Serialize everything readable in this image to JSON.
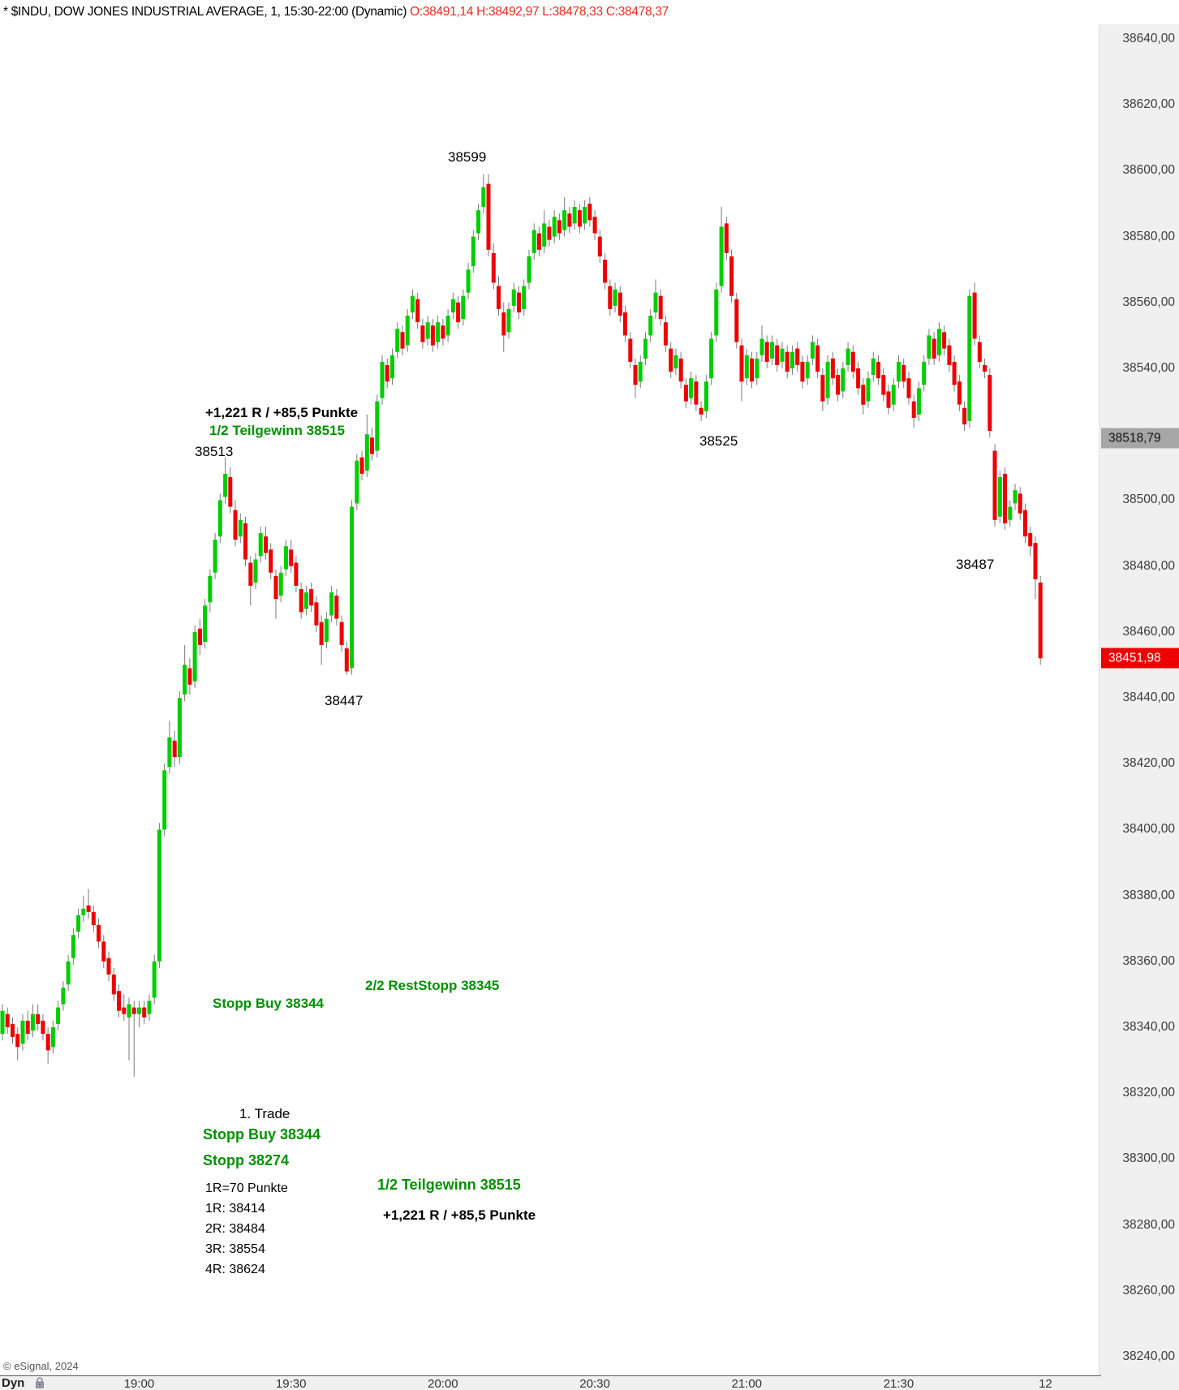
{
  "header": {
    "title": "* $INDU, DOW JONES INDUSTRIAL AVERAGE, 1, 15:30-22:00 (Dynamic)",
    "ohlc": "O:38491,14 H:38492,97 L:38478,33 C:38478,37"
  },
  "watermark": "© eSignal, 2024",
  "bottom_bar": {
    "mode_label": "Dyn",
    "lock_icon": "padlock-icon",
    "time_ticks": [
      {
        "label": "19:00",
        "minutes": 0
      },
      {
        "label": "19:30",
        "minutes": 30
      },
      {
        "label": "20:00",
        "minutes": 60
      },
      {
        "label": "20:30",
        "minutes": 90
      },
      {
        "label": "21:00",
        "minutes": 120
      },
      {
        "label": "21:30",
        "minutes": 150
      },
      {
        "label": "12",
        "minutes": 179
      }
    ]
  },
  "y_axis": {
    "ticks": [
      {
        "label": "38640,00",
        "value": 38640
      },
      {
        "label": "38620,00",
        "value": 38620
      },
      {
        "label": "38600,00",
        "value": 38600
      },
      {
        "label": "38580,00",
        "value": 38580
      },
      {
        "label": "38560,00",
        "value": 38560
      },
      {
        "label": "38540,00",
        "value": 38540
      },
      {
        "label": "38520,00",
        "value": 38520,
        "hidden": true
      },
      {
        "label": "38500,00",
        "value": 38500
      },
      {
        "label": "38480,00",
        "value": 38480
      },
      {
        "label": "38460,00",
        "value": 38460
      },
      {
        "label": "38440,00",
        "value": 38440
      },
      {
        "label": "38420,00",
        "value": 38420
      },
      {
        "label": "38400,00",
        "value": 38400
      },
      {
        "label": "38380,00",
        "value": 38380
      },
      {
        "label": "38360,00",
        "value": 38360
      },
      {
        "label": "38340,00",
        "value": 38340
      },
      {
        "label": "38320,00",
        "value": 38320
      },
      {
        "label": "38300,00",
        "value": 38300
      },
      {
        "label": "38280,00",
        "value": 38280
      },
      {
        "label": "38260,00",
        "value": 38260
      },
      {
        "label": "38240,00",
        "value": 38240
      }
    ],
    "last_price": {
      "label": "38451,98",
      "value": 38451.98
    },
    "ref_price": {
      "label": "38518,79",
      "value": 38518.79
    }
  },
  "annotations": {
    "peak_599": {
      "text": "38599"
    },
    "tp_punkte_top": {
      "text": "+1,221 R / +85,5 Punkte"
    },
    "teilgewinn_top": {
      "text": "1/2 Teilgewinn 38515"
    },
    "lbl_38513": {
      "text": "38513"
    },
    "lbl_38525": {
      "text": "38525"
    },
    "lbl_38487": {
      "text": "38487"
    },
    "lbl_38447": {
      "text": "38447"
    },
    "reststopp": {
      "text": "2/2 RestStopp 38345"
    },
    "stoppbuy_line": {
      "text": "Stopp Buy 38344"
    },
    "trade_title": {
      "text": "1. Trade"
    },
    "stoppbuy_block": {
      "text": "Stopp Buy 38344"
    },
    "stopp_block": {
      "text": "Stopp 38274"
    },
    "r_def": {
      "text": "1R=70 Punkte"
    },
    "r1": {
      "text": "1R: 38414"
    },
    "r2": {
      "text": "2R: 38484"
    },
    "r3": {
      "text": "3R: 38554"
    },
    "r4": {
      "text": "4R: 38624"
    },
    "teilgewinn_block": {
      "text": "1/2 Teilgewinn 38515"
    },
    "tp_punkte_block": {
      "text": "+1,221 R / +85,5 Punkte"
    }
  },
  "chart_data": {
    "type": "candlestick",
    "title": "$INDU, DOW JONES INDUSTRIAL AVERAGE, 1 min, 15:30-22:00 (Dynamic)",
    "interval_minutes": 1,
    "first_candle_time": "18:33",
    "session": "15:30-22:00",
    "ylim": [
      38240,
      38640
    ],
    "grid": false,
    "legend": "none",
    "key_levels": {
      "high": 38599,
      "swing_high": 38513,
      "swing_low": 38447,
      "late_low": 38487,
      "mid_low": 38525,
      "last": 38451.98,
      "stop_buy": 38344,
      "rest_stop": 38345,
      "initial_stop": 38274,
      "teilgewinn": 38515,
      "r_unit_points": 70,
      "r_targets": [
        38414,
        38484,
        38554,
        38624
      ]
    },
    "up_color": "#00ce00",
    "down_color": "#ee0000",
    "wick_color": "#7a7a7a",
    "candles": [
      [
        38338,
        38347,
        38336,
        38345
      ],
      [
        38344,
        38346,
        38338,
        38340
      ],
      [
        38341,
        38343,
        38335,
        38337
      ],
      [
        38338,
        38340,
        38330,
        38334
      ],
      [
        38335,
        38344,
        38333,
        38342
      ],
      [
        38342,
        38345,
        38336,
        38338
      ],
      [
        38339,
        38347,
        38337,
        38344
      ],
      [
        38344,
        38347,
        38339,
        38341
      ],
      [
        38342,
        38344,
        38336,
        38338
      ],
      [
        38338,
        38340,
        38329,
        38333
      ],
      [
        38334,
        38342,
        38332,
        38340
      ],
      [
        38341,
        38348,
        38339,
        38346
      ],
      [
        38347,
        38354,
        38345,
        38352
      ],
      [
        38353,
        38362,
        38351,
        38360
      ],
      [
        38361,
        38370,
        38359,
        38368
      ],
      [
        38369,
        38376,
        38367,
        38374
      ],
      [
        38374,
        38380,
        38372,
        38376
      ],
      [
        38377,
        38382,
        38373,
        38375
      ],
      [
        38375,
        38377,
        38369,
        38371
      ],
      [
        38371,
        38373,
        38364,
        38366
      ],
      [
        38366,
        38368,
        38358,
        38360
      ],
      [
        38361,
        38363,
        38354,
        38356
      ],
      [
        38356,
        38358,
        38348,
        38350
      ],
      [
        38351,
        38353,
        38343,
        38345
      ],
      [
        38346,
        38350,
        38342,
        38344
      ],
      [
        38343,
        38349,
        38330,
        38347
      ],
      [
        38346,
        38348,
        38325,
        38344
      ],
      [
        38344,
        38348,
        38340,
        38346
      ],
      [
        38346,
        38348,
        38341,
        38343
      ],
      [
        38344,
        38350,
        38342,
        38348
      ],
      [
        38349,
        38362,
        38347,
        38360
      ],
      [
        38360,
        38402,
        38358,
        38400
      ],
      [
        38400,
        38420,
        38398,
        38418
      ],
      [
        38419,
        38433,
        38417,
        38428
      ],
      [
        38427,
        38430,
        38419,
        38422
      ],
      [
        38422,
        38442,
        38420,
        38440
      ],
      [
        38441,
        38456,
        38439,
        38450
      ],
      [
        38449,
        38452,
        38441,
        38444
      ],
      [
        38445,
        38462,
        38443,
        38460
      ],
      [
        38461,
        38464,
        38453,
        38456
      ],
      [
        38457,
        38470,
        38455,
        38468
      ],
      [
        38469,
        38479,
        38466,
        38477
      ],
      [
        38478,
        38490,
        38476,
        38488
      ],
      [
        38489,
        38502,
        38487,
        38500
      ],
      [
        38501,
        38513,
        38499,
        38508
      ],
      [
        38507,
        38510,
        38496,
        38498
      ],
      [
        38497,
        38500,
        38486,
        38488
      ],
      [
        38489,
        38496,
        38487,
        38494
      ],
      [
        38493,
        38495,
        38480,
        38482
      ],
      [
        38481,
        38483,
        38468,
        38474
      ],
      [
        38475,
        38484,
        38473,
        38482
      ],
      [
        38483,
        38492,
        38481,
        38490
      ],
      [
        38489,
        38492,
        38482,
        38484
      ],
      [
        38485,
        38487,
        38476,
        38478
      ],
      [
        38477,
        38479,
        38464,
        38470
      ],
      [
        38471,
        38480,
        38469,
        38478
      ],
      [
        38479,
        38488,
        38477,
        38486
      ],
      [
        38485,
        38488,
        38478,
        38480
      ],
      [
        38481,
        38483,
        38472,
        38474
      ],
      [
        38473,
        38475,
        38464,
        38466
      ],
      [
        38467,
        38474,
        38465,
        38472
      ],
      [
        38473,
        38475,
        38466,
        38468
      ],
      [
        38469,
        38471,
        38460,
        38462
      ],
      [
        38463,
        38465,
        38450,
        38456
      ],
      [
        38457,
        38466,
        38455,
        38464
      ],
      [
        38465,
        38474,
        38463,
        38472
      ],
      [
        38471,
        38473,
        38462,
        38464
      ],
      [
        38463,
        38465,
        38454,
        38456
      ],
      [
        38455,
        38457,
        38447,
        38448
      ],
      [
        38449,
        38500,
        38447,
        38498
      ],
      [
        38499,
        38514,
        38497,
        38512
      ],
      [
        38513,
        38515,
        38506,
        38508
      ],
      [
        38509,
        38526,
        38507,
        38520
      ],
      [
        38519,
        38522,
        38512,
        38514
      ],
      [
        38515,
        38532,
        38513,
        38530
      ],
      [
        38531,
        38544,
        38529,
        38542
      ],
      [
        38541,
        38543,
        38534,
        38536
      ],
      [
        38537,
        38546,
        38535,
        38544
      ],
      [
        38545,
        38554,
        38543,
        38552
      ],
      [
        38551,
        38553,
        38544,
        38546
      ],
      [
        38547,
        38558,
        38545,
        38556
      ],
      [
        38557,
        38564,
        38555,
        38562
      ],
      [
        38561,
        38563,
        38552,
        38554
      ],
      [
        38553,
        38555,
        38546,
        38548
      ],
      [
        38549,
        38556,
        38547,
        38554
      ],
      [
        38553,
        38555,
        38545,
        38547
      ],
      [
        38548,
        38556,
        38546,
        38554
      ],
      [
        38553,
        38555,
        38547,
        38549
      ],
      [
        38550,
        38558,
        38548,
        38556
      ],
      [
        38557,
        38563,
        38555,
        38561
      ],
      [
        38560,
        38562,
        38552,
        38554
      ],
      [
        38555,
        38564,
        38553,
        38562
      ],
      [
        38563,
        38572,
        38561,
        38570
      ],
      [
        38571,
        38582,
        38569,
        38580
      ],
      [
        38581,
        38590,
        38579,
        38588
      ],
      [
        38589,
        38599,
        38587,
        38595
      ],
      [
        38596,
        38599,
        38574,
        38576
      ],
      [
        38575,
        38578,
        38564,
        38566
      ],
      [
        38565,
        38568,
        38556,
        38558
      ],
      [
        38557,
        38560,
        38545,
        38550
      ],
      [
        38551,
        38560,
        38549,
        38558
      ],
      [
        38559,
        38566,
        38557,
        38564
      ],
      [
        38563,
        38565,
        38555,
        38557
      ],
      [
        38558,
        38567,
        38556,
        38565
      ],
      [
        38566,
        38576,
        38564,
        38574
      ],
      [
        38575,
        38584,
        38573,
        38582
      ],
      [
        38581,
        38583,
        38574,
        38576
      ],
      [
        38577,
        38588,
        38575,
        38584
      ],
      [
        38583,
        38585,
        38577,
        38579
      ],
      [
        38580,
        38588,
        38578,
        38586
      ],
      [
        38585,
        38587,
        38579,
        38581
      ],
      [
        38582,
        38592,
        38580,
        38588
      ],
      [
        38587,
        38589,
        38581,
        38583
      ],
      [
        38584,
        38591,
        38582,
        38589
      ],
      [
        38588,
        38590,
        38581,
        38583
      ],
      [
        38584,
        38591,
        38582,
        38589
      ],
      [
        38590,
        38592,
        38583,
        38585
      ],
      [
        38586,
        38588,
        38579,
        38581
      ],
      [
        38580,
        38582,
        38572,
        38574
      ],
      [
        38573,
        38575,
        38564,
        38566
      ],
      [
        38565,
        38567,
        38556,
        38558
      ],
      [
        38559,
        38566,
        38557,
        38564
      ],
      [
        38563,
        38565,
        38554,
        38556
      ],
      [
        38557,
        38559,
        38548,
        38550
      ],
      [
        38549,
        38551,
        38540,
        38542
      ],
      [
        38541,
        38543,
        38531,
        38535
      ],
      [
        38536,
        38544,
        38534,
        38542
      ],
      [
        38543,
        38551,
        38541,
        38549
      ],
      [
        38550,
        38558,
        38548,
        38556
      ],
      [
        38557,
        38567,
        38555,
        38563
      ],
      [
        38562,
        38564,
        38553,
        38555
      ],
      [
        38554,
        38556,
        38545,
        38547
      ],
      [
        38546,
        38548,
        38537,
        38539
      ],
      [
        38540,
        38546,
        38538,
        38544
      ],
      [
        38543,
        38545,
        38534,
        38536
      ],
      [
        38535,
        38537,
        38528,
        38530
      ],
      [
        38531,
        38539,
        38529,
        38537
      ],
      [
        38536,
        38538,
        38527,
        38529
      ],
      [
        38528,
        38530,
        38524,
        38526
      ],
      [
        38527,
        38538,
        38525,
        38536
      ],
      [
        38537,
        38551,
        38535,
        38549
      ],
      [
        38550,
        38566,
        38548,
        38564
      ],
      [
        38565,
        38589,
        38563,
        38583
      ],
      [
        38584,
        38586,
        38573,
        38575
      ],
      [
        38574,
        38576,
        38560,
        38562
      ],
      [
        38561,
        38563,
        38546,
        38548
      ],
      [
        38547,
        38549,
        38530,
        38536
      ],
      [
        38537,
        38546,
        38535,
        38544
      ],
      [
        38543,
        38545,
        38534,
        38536
      ],
      [
        38537,
        38545,
        38535,
        38543
      ],
      [
        38544,
        38553,
        38542,
        38549
      ],
      [
        38548,
        38550,
        38540,
        38542
      ],
      [
        38543,
        38550,
        38541,
        38548
      ],
      [
        38547,
        38549,
        38539,
        38541
      ],
      [
        38542,
        38548,
        38540,
        38546
      ],
      [
        38545,
        38547,
        38537,
        38539
      ],
      [
        38540,
        38547,
        38538,
        38545
      ],
      [
        38546,
        38548,
        38539,
        38541
      ],
      [
        38542,
        38544,
        38534,
        38536
      ],
      [
        38537,
        38544,
        38535,
        38542
      ],
      [
        38543,
        38550,
        38541,
        38548
      ],
      [
        38547,
        38549,
        38537,
        38539
      ],
      [
        38538,
        38540,
        38527,
        38530
      ],
      [
        38531,
        38544,
        38529,
        38542
      ],
      [
        38543,
        38545,
        38535,
        38537
      ],
      [
        38538,
        38540,
        38530,
        38532
      ],
      [
        38533,
        38542,
        38531,
        38540
      ],
      [
        38541,
        38548,
        38539,
        38546
      ],
      [
        38545,
        38547,
        38537,
        38539
      ],
      [
        38540,
        38542,
        38532,
        38534
      ],
      [
        38535,
        38537,
        38526,
        38529
      ],
      [
        38530,
        38539,
        38528,
        38537
      ],
      [
        38538,
        38545,
        38536,
        38543
      ],
      [
        38542,
        38544,
        38535,
        38537
      ],
      [
        38538,
        38540,
        38530,
        38532
      ],
      [
        38533,
        38535,
        38526,
        38528
      ],
      [
        38529,
        38537,
        38527,
        38535
      ],
      [
        38536,
        38544,
        38534,
        38542
      ],
      [
        38541,
        38543,
        38534,
        38536
      ],
      [
        38537,
        38539,
        38529,
        38531
      ],
      [
        38530,
        38532,
        38522,
        38525
      ],
      [
        38526,
        38536,
        38524,
        38534
      ],
      [
        38535,
        38544,
        38533,
        38542
      ],
      [
        38543,
        38552,
        38541,
        38550
      ],
      [
        38549,
        38551,
        38541,
        38543
      ],
      [
        38544,
        38554,
        38542,
        38552
      ],
      [
        38551,
        38553,
        38544,
        38546
      ],
      [
        38547,
        38549,
        38539,
        38541
      ],
      [
        38542,
        38544,
        38533,
        38535
      ],
      [
        38536,
        38538,
        38527,
        38529
      ],
      [
        38528,
        38530,
        38521,
        38523
      ],
      [
        38524,
        38564,
        38522,
        38562
      ],
      [
        38563,
        38566,
        38547,
        38549
      ],
      [
        38548,
        38550,
        38540,
        38542
      ],
      [
        38541,
        38543,
        38537,
        38539
      ],
      [
        38538,
        38540,
        38519,
        38521
      ],
      [
        38515,
        38517,
        38492,
        38494
      ],
      [
        38495,
        38509,
        38493,
        38507
      ],
      [
        38508,
        38510,
        38491,
        38493
      ],
      [
        38494,
        38500,
        38492,
        38498
      ],
      [
        38499,
        38505,
        38497,
        38503
      ],
      [
        38502,
        38504,
        38494,
        38496
      ],
      [
        38497,
        38499,
        38487,
        38489
      ],
      [
        38490,
        38492,
        38483,
        38486
      ],
      [
        38487,
        38489,
        38470,
        38476
      ],
      [
        38475,
        38477,
        38450,
        38452
      ]
    ]
  }
}
